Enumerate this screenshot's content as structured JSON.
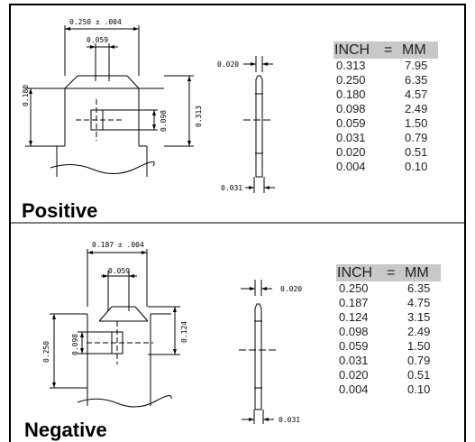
{
  "positive": {
    "title": "Positive",
    "dims": {
      "overall": "0.250  ±  .004",
      "inner": "0.059",
      "left": "0.180",
      "right_inner": "0.098",
      "right_outer": "0.313",
      "thickness_top": "0.020",
      "thickness_bottom": "0.031"
    },
    "table": {
      "header": {
        "inch": "INCH",
        "eq": "=",
        "mm": "MM"
      },
      "rows": [
        {
          "inch": "0.313",
          "mm": "7.95"
        },
        {
          "inch": "0.250",
          "mm": "6.35"
        },
        {
          "inch": "0.180",
          "mm": "4.57"
        },
        {
          "inch": "0.098",
          "mm": "2.49"
        },
        {
          "inch": "0.059",
          "mm": "1.50"
        },
        {
          "inch": "0.031",
          "mm": "0.79"
        },
        {
          "inch": "0.020",
          "mm": "0.51"
        },
        {
          "inch": "0.004",
          "mm": "0.10"
        }
      ]
    }
  },
  "negative": {
    "title": "Negative",
    "dims": {
      "overall": "0.187  ±  .004",
      "inner": "0.059",
      "left_outer": "0.250",
      "left_inner": "0.098",
      "right": "0.124",
      "thickness_top": "0.020",
      "thickness_bottom": "0.031"
    },
    "table": {
      "header": {
        "inch": "INCH",
        "eq": "=",
        "mm": "MM"
      },
      "rows": [
        {
          "inch": "0.250",
          "mm": "6.35"
        },
        {
          "inch": "0.187",
          "mm": "4.75"
        },
        {
          "inch": "0.124",
          "mm": "3.15"
        },
        {
          "inch": "0.098",
          "mm": "2.49"
        },
        {
          "inch": "0.059",
          "mm": "1.50"
        },
        {
          "inch": "0.031",
          "mm": "0.79"
        },
        {
          "inch": "0.020",
          "mm": "0.51"
        },
        {
          "inch": "0.004",
          "mm": "0.10"
        }
      ]
    }
  }
}
